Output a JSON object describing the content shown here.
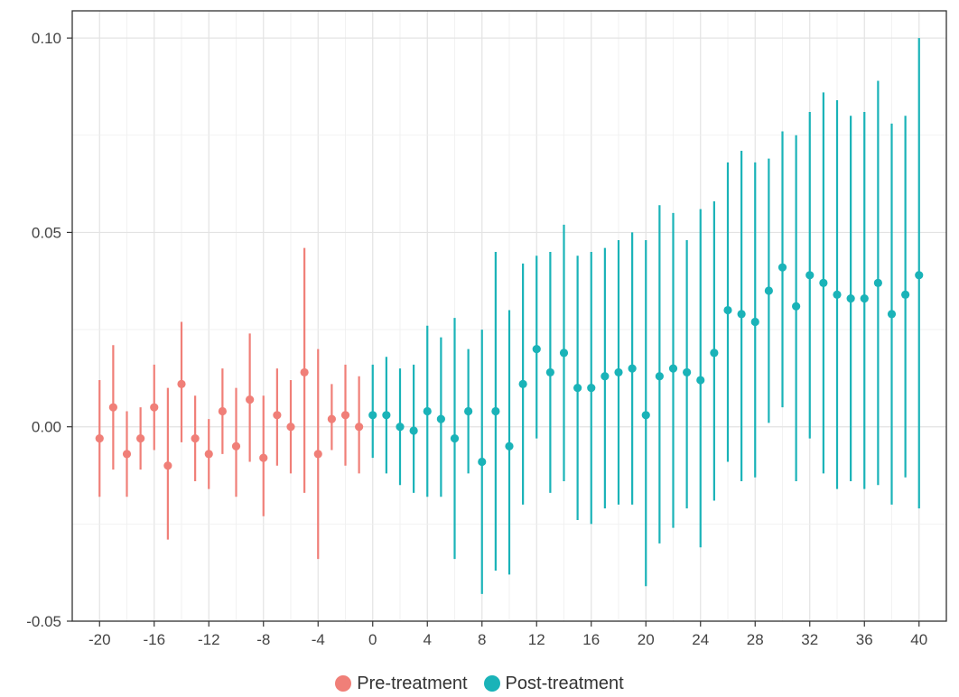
{
  "chart_data": {
    "type": "errorbar",
    "x": [
      -20,
      -19,
      -18,
      -17,
      -16,
      -15,
      -14,
      -13,
      -12,
      -11,
      -10,
      -9,
      -8,
      -7,
      -6,
      -5,
      -4,
      -3,
      -2,
      -1,
      0,
      1,
      2,
      3,
      4,
      5,
      6,
      7,
      8,
      9,
      10,
      11,
      12,
      13,
      14,
      15,
      16,
      17,
      18,
      19,
      20,
      21,
      22,
      23,
      24,
      25,
      26,
      27,
      28,
      29,
      30,
      31,
      32,
      33,
      34,
      35,
      36,
      37,
      38,
      39,
      40
    ],
    "series": [
      {
        "name": "Pre-treatment",
        "color": "#f07f78",
        "points": [
          {
            "x": -20,
            "y": -0.003,
            "lo": -0.018,
            "hi": 0.012
          },
          {
            "x": -19,
            "y": 0.005,
            "lo": -0.011,
            "hi": 0.021
          },
          {
            "x": -18,
            "y": -0.007,
            "lo": -0.018,
            "hi": 0.004
          },
          {
            "x": -17,
            "y": -0.003,
            "lo": -0.011,
            "hi": 0.005
          },
          {
            "x": -16,
            "y": 0.005,
            "lo": -0.006,
            "hi": 0.016
          },
          {
            "x": -15,
            "y": -0.01,
            "lo": -0.029,
            "hi": 0.01
          },
          {
            "x": -14,
            "y": 0.011,
            "lo": -0.004,
            "hi": 0.027
          },
          {
            "x": -13,
            "y": -0.003,
            "lo": -0.014,
            "hi": 0.008
          },
          {
            "x": -12,
            "y": -0.007,
            "lo": -0.016,
            "hi": 0.002
          },
          {
            "x": -11,
            "y": 0.004,
            "lo": -0.007,
            "hi": 0.015
          },
          {
            "x": -10,
            "y": -0.005,
            "lo": -0.018,
            "hi": 0.01
          },
          {
            "x": -9,
            "y": 0.007,
            "lo": -0.009,
            "hi": 0.024
          },
          {
            "x": -8,
            "y": -0.008,
            "lo": -0.023,
            "hi": 0.008
          },
          {
            "x": -7,
            "y": 0.003,
            "lo": -0.01,
            "hi": 0.015
          },
          {
            "x": -6,
            "y": 0.0,
            "lo": -0.012,
            "hi": 0.012
          },
          {
            "x": -5,
            "y": 0.014,
            "lo": -0.017,
            "hi": 0.046
          },
          {
            "x": -4,
            "y": -0.007,
            "lo": -0.034,
            "hi": 0.02
          },
          {
            "x": -3,
            "y": 0.002,
            "lo": -0.006,
            "hi": 0.011
          },
          {
            "x": -2,
            "y": 0.003,
            "lo": -0.01,
            "hi": 0.016
          },
          {
            "x": -1,
            "y": 0.0,
            "lo": -0.012,
            "hi": 0.013
          }
        ]
      },
      {
        "name": "Post-treatment",
        "color": "#1ab3b8",
        "points": [
          {
            "x": 0,
            "y": 0.003,
            "lo": -0.008,
            "hi": 0.016
          },
          {
            "x": 1,
            "y": 0.003,
            "lo": -0.012,
            "hi": 0.018
          },
          {
            "x": 2,
            "y": 0.0,
            "lo": -0.015,
            "hi": 0.015
          },
          {
            "x": 3,
            "y": -0.001,
            "lo": -0.017,
            "hi": 0.016
          },
          {
            "x": 4,
            "y": 0.004,
            "lo": -0.018,
            "hi": 0.026
          },
          {
            "x": 5,
            "y": 0.002,
            "lo": -0.018,
            "hi": 0.023
          },
          {
            "x": 6,
            "y": -0.003,
            "lo": -0.034,
            "hi": 0.028
          },
          {
            "x": 7,
            "y": 0.004,
            "lo": -0.012,
            "hi": 0.02
          },
          {
            "x": 8,
            "y": -0.009,
            "lo": -0.043,
            "hi": 0.025
          },
          {
            "x": 9,
            "y": 0.004,
            "lo": -0.037,
            "hi": 0.045
          },
          {
            "x": 10,
            "y": -0.005,
            "lo": -0.038,
            "hi": 0.03
          },
          {
            "x": 11,
            "y": 0.011,
            "lo": -0.02,
            "hi": 0.042
          },
          {
            "x": 12,
            "y": 0.02,
            "lo": -0.003,
            "hi": 0.044
          },
          {
            "x": 13,
            "y": 0.014,
            "lo": -0.017,
            "hi": 0.045
          },
          {
            "x": 14,
            "y": 0.019,
            "lo": -0.014,
            "hi": 0.052
          },
          {
            "x": 15,
            "y": 0.01,
            "lo": -0.024,
            "hi": 0.044
          },
          {
            "x": 16,
            "y": 0.01,
            "lo": -0.025,
            "hi": 0.045
          },
          {
            "x": 17,
            "y": 0.013,
            "lo": -0.021,
            "hi": 0.046
          },
          {
            "x": 18,
            "y": 0.014,
            "lo": -0.02,
            "hi": 0.048
          },
          {
            "x": 19,
            "y": 0.015,
            "lo": -0.02,
            "hi": 0.05
          },
          {
            "x": 20,
            "y": 0.003,
            "lo": -0.041,
            "hi": 0.048
          },
          {
            "x": 21,
            "y": 0.013,
            "lo": -0.03,
            "hi": 0.057
          },
          {
            "x": 22,
            "y": 0.015,
            "lo": -0.026,
            "hi": 0.055
          },
          {
            "x": 23,
            "y": 0.014,
            "lo": -0.021,
            "hi": 0.048
          },
          {
            "x": 24,
            "y": 0.012,
            "lo": -0.031,
            "hi": 0.056
          },
          {
            "x": 25,
            "y": 0.019,
            "lo": -0.019,
            "hi": 0.058
          },
          {
            "x": 26,
            "y": 0.03,
            "lo": -0.009,
            "hi": 0.068
          },
          {
            "x": 27,
            "y": 0.029,
            "lo": -0.014,
            "hi": 0.071
          },
          {
            "x": 28,
            "y": 0.027,
            "lo": -0.013,
            "hi": 0.068
          },
          {
            "x": 29,
            "y": 0.035,
            "lo": 0.001,
            "hi": 0.069
          },
          {
            "x": 30,
            "y": 0.041,
            "lo": 0.005,
            "hi": 0.076
          },
          {
            "x": 31,
            "y": 0.031,
            "lo": -0.014,
            "hi": 0.075
          },
          {
            "x": 32,
            "y": 0.039,
            "lo": -0.003,
            "hi": 0.081
          },
          {
            "x": 33,
            "y": 0.037,
            "lo": -0.012,
            "hi": 0.086
          },
          {
            "x": 34,
            "y": 0.034,
            "lo": -0.016,
            "hi": 0.084
          },
          {
            "x": 35,
            "y": 0.033,
            "lo": -0.014,
            "hi": 0.08
          },
          {
            "x": 36,
            "y": 0.033,
            "lo": -0.016,
            "hi": 0.081
          },
          {
            "x": 37,
            "y": 0.037,
            "lo": -0.015,
            "hi": 0.089
          },
          {
            "x": 38,
            "y": 0.029,
            "lo": -0.02,
            "hi": 0.078
          },
          {
            "x": 39,
            "y": 0.034,
            "lo": -0.013,
            "hi": 0.08
          },
          {
            "x": 40,
            "y": 0.039,
            "lo": -0.021,
            "hi": 0.1
          }
        ]
      }
    ],
    "x_ticks": [
      -20,
      -16,
      -12,
      -8,
      -4,
      0,
      4,
      8,
      12,
      16,
      20,
      24,
      28,
      32,
      36,
      40
    ],
    "x_tick_labels": [
      "-20",
      "-16",
      "-12",
      "-8",
      "-4",
      "0",
      "4",
      "8",
      "12",
      "16",
      "20",
      "24",
      "28",
      "32",
      "36",
      "40"
    ],
    "y_ticks": [
      -0.05,
      0.0,
      0.05,
      0.1
    ],
    "y_tick_labels": [
      "-0.05",
      "0.00",
      "0.05",
      "0.10"
    ],
    "xlim": [
      -22,
      42
    ],
    "ylim": [
      -0.05,
      0.107
    ],
    "title": "",
    "xlabel": "",
    "ylabel": "",
    "grid": true,
    "legend_position": "bottom",
    "legend": [
      {
        "label": "Pre-treatment",
        "color": "#f07f78"
      },
      {
        "label": "Post-treatment",
        "color": "#1ab3b8"
      }
    ]
  }
}
